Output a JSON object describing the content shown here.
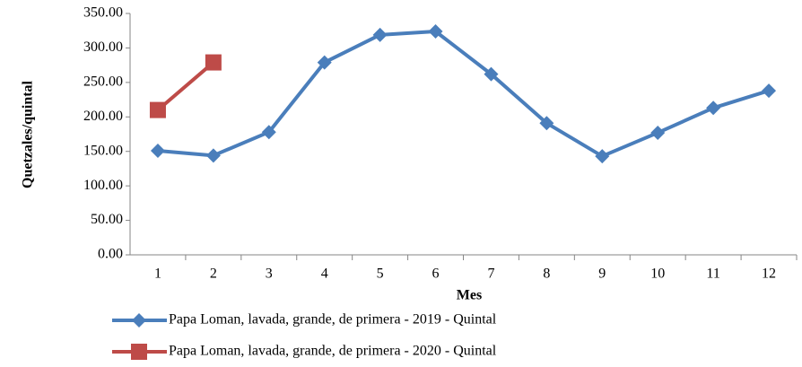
{
  "chart_data": {
    "type": "line",
    "x_label": "Mes",
    "y_label": "Quetzales/quintal",
    "categories": [
      "1",
      "2",
      "3",
      "4",
      "5",
      "6",
      "7",
      "8",
      "9",
      "10",
      "11",
      "12"
    ],
    "series": [
      {
        "name": "Papa Loman, lavada, grande, de primera - 2019 - Quintal",
        "color": "#4a7ebb",
        "marker": "diamond",
        "values": [
          151,
          144,
          178,
          279,
          319,
          324,
          262,
          191,
          143,
          177,
          213,
          238
        ]
      },
      {
        "name": "Papa Loman, lavada, grande, de primera - 2020 - Quintal",
        "color": "#be4b48",
        "marker": "square",
        "values": [
          210,
          279,
          null,
          null,
          null,
          null,
          null,
          null,
          null,
          null,
          null,
          null
        ]
      }
    ],
    "ylim": [
      0,
      350
    ],
    "yticks": [
      {
        "value": 0,
        "label": "0.00"
      },
      {
        "value": 50,
        "label": "50.00"
      },
      {
        "value": 100,
        "label": "100.00"
      },
      {
        "value": 150,
        "label": "150.00"
      },
      {
        "value": 200,
        "label": "200.00"
      },
      {
        "value": 250,
        "label": "250.00"
      },
      {
        "value": 300,
        "label": "300.00"
      },
      {
        "value": 350,
        "label": "350.00"
      }
    ],
    "grid": false,
    "legend": "bottom"
  }
}
